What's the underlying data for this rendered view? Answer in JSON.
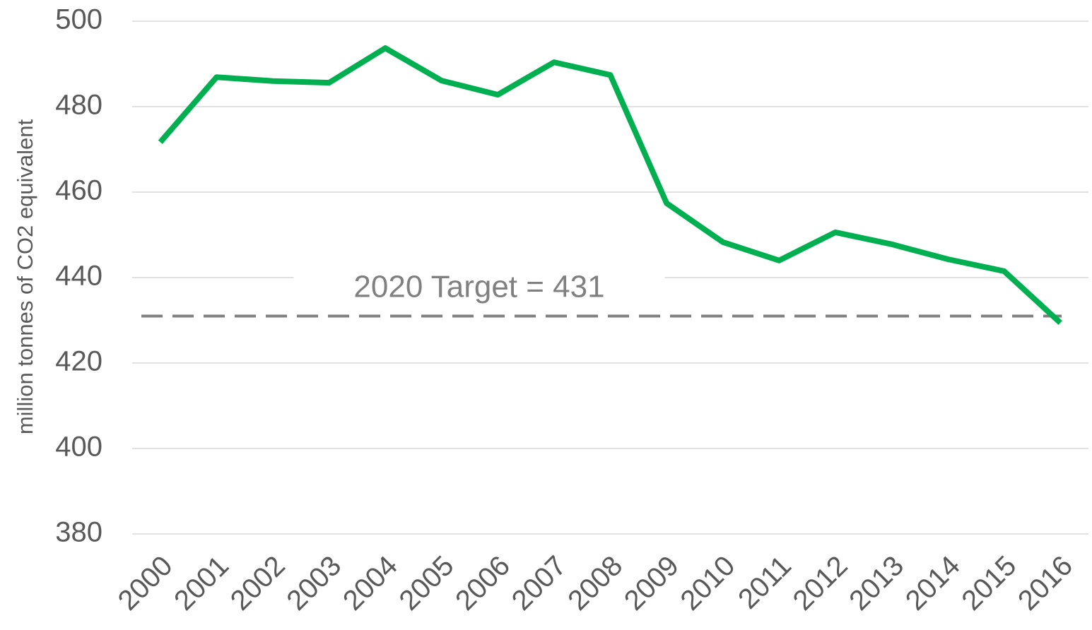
{
  "chart_data": {
    "type": "line",
    "y_label": "million tonnes of CO2 equivalent",
    "categories": [
      "2000",
      "2001",
      "2002",
      "2003",
      "2004",
      "2005",
      "2006",
      "2007",
      "2008",
      "2009",
      "2010",
      "2011",
      "2012",
      "2013",
      "2014",
      "2015",
      "2016"
    ],
    "series": [
      {
        "color": "#00b050",
        "values": [
          471.7,
          486.9,
          486.0,
          485.6,
          493.7,
          486.1,
          482.8,
          490.4,
          487.4,
          457.4,
          448.3,
          444.0,
          450.6,
          447.8,
          444.3,
          441.5,
          429.4
        ]
      }
    ],
    "target": {
      "value": 431,
      "label": "2020 Target = 431",
      "color": "#808080"
    },
    "ylim": [
      380,
      500
    ],
    "yticks": [
      380,
      400,
      420,
      440,
      460,
      480,
      500
    ],
    "grid": true
  }
}
